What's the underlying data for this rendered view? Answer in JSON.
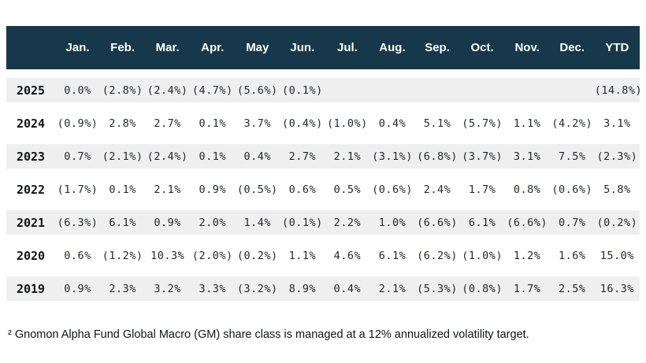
{
  "table": {
    "corner_label": "",
    "columns": [
      "Jan.",
      "Feb.",
      "Mar.",
      "Apr.",
      "May",
      "Jun.",
      "Jul.",
      "Aug.",
      "Sep.",
      "Oct.",
      "Nov.",
      "Dec.",
      "YTD"
    ],
    "rows": [
      {
        "year": "2025",
        "values": [
          "0.0%",
          "(2.8%)",
          "(2.4%)",
          "(4.7%)",
          "(5.6%)",
          "(0.1%)",
          "",
          "",
          "",
          "",
          "",
          "",
          "(14.8%)"
        ]
      },
      {
        "year": "2024",
        "values": [
          "(0.9%)",
          "2.8%",
          "2.7%",
          "0.1%",
          "3.7%",
          "(0.4%)",
          "(1.0%)",
          "0.4%",
          "5.1%",
          "(5.7%)",
          "1.1%",
          "(4.2%)",
          "3.1%"
        ]
      },
      {
        "year": "2023",
        "values": [
          "0.7%",
          "(2.1%)",
          "(2.4%)",
          "0.1%",
          "0.4%",
          "2.7%",
          "2.1%",
          "(3.1%)",
          "(6.8%)",
          "(3.7%)",
          "3.1%",
          "7.5%",
          "(2.3%)"
        ]
      },
      {
        "year": "2022",
        "values": [
          "(1.7%)",
          "0.1%",
          "2.1%",
          "0.9%",
          "(0.5%)",
          "0.6%",
          "0.5%",
          "(0.6%)",
          "2.4%",
          "1.7%",
          "0.8%",
          "(0.6%)",
          "5.8%"
        ]
      },
      {
        "year": "2021",
        "values": [
          "(6.3%)",
          "6.1%",
          "0.9%",
          "2.0%",
          "1.4%",
          "(0.1%)",
          "2.2%",
          "1.0%",
          "(6.6%)",
          "6.1%",
          "(6.6%)",
          "0.7%",
          "(0.2%)"
        ]
      },
      {
        "year": "2020",
        "values": [
          "0.6%",
          "(1.2%)",
          "10.3%",
          "(2.0%)",
          "(0.2%)",
          "1.1%",
          "4.6%",
          "6.1%",
          "(6.2%)",
          "(1.0%)",
          "1.2%",
          "1.6%",
          "15.0%"
        ]
      },
      {
        "year": "2019",
        "values": [
          "0.9%",
          "2.3%",
          "3.2%",
          "3.3%",
          "(3.2%)",
          "8.9%",
          "0.4%",
          "2.1%",
          "(5.3%)",
          "(0.8%)",
          "1.7%",
          "2.5%",
          "16.3%"
        ]
      }
    ]
  },
  "footnote": {
    "text": "² Gnomon Alpha Fund Global Macro (GM) share class is managed at a 12% annualized volatility target."
  },
  "colors": {
    "header_bg": "#16384a",
    "header_text": "#ffffff",
    "row_stripe": "#efefef",
    "body_text": "#24292f"
  },
  "chart_data": {
    "type": "table",
    "title": "Gnomon Alpha Fund Global Macro (GM) monthly returns",
    "columns": [
      "Jan",
      "Feb",
      "Mar",
      "Apr",
      "May",
      "Jun",
      "Jul",
      "Aug",
      "Sep",
      "Oct",
      "Nov",
      "Dec",
      "YTD"
    ],
    "unit": "percent",
    "negative_format": "parentheses",
    "series": [
      {
        "name": "2025",
        "monthly": [
          0.0,
          -2.8,
          -2.4,
          -4.7,
          -5.6,
          -0.1,
          null,
          null,
          null,
          null,
          null,
          null
        ],
        "ytd": -14.8
      },
      {
        "name": "2024",
        "monthly": [
          -0.9,
          2.8,
          2.7,
          0.1,
          3.7,
          -0.4,
          -1.0,
          0.4,
          5.1,
          -5.7,
          1.1,
          -4.2
        ],
        "ytd": 3.1
      },
      {
        "name": "2023",
        "monthly": [
          0.7,
          -2.1,
          -2.4,
          0.1,
          0.4,
          2.7,
          2.1,
          -3.1,
          -6.8,
          -3.7,
          3.1,
          7.5
        ],
        "ytd": -2.3
      },
      {
        "name": "2022",
        "monthly": [
          -1.7,
          0.1,
          2.1,
          0.9,
          -0.5,
          0.6,
          0.5,
          -0.6,
          2.4,
          1.7,
          0.8,
          -0.6
        ],
        "ytd": 5.8
      },
      {
        "name": "2021",
        "monthly": [
          -6.3,
          6.1,
          0.9,
          2.0,
          1.4,
          -0.1,
          2.2,
          1.0,
          -6.6,
          6.1,
          -6.6,
          0.7
        ],
        "ytd": -0.2
      },
      {
        "name": "2020",
        "monthly": [
          0.6,
          -1.2,
          10.3,
          -2.0,
          -0.2,
          1.1,
          4.6,
          6.1,
          -6.2,
          -1.0,
          1.2,
          1.6
        ],
        "ytd": 15.0
      },
      {
        "name": "2019",
        "monthly": [
          0.9,
          2.3,
          3.2,
          3.3,
          -3.2,
          8.9,
          0.4,
          2.1,
          -5.3,
          -0.8,
          1.7,
          2.5
        ],
        "ytd": 16.3
      }
    ]
  }
}
